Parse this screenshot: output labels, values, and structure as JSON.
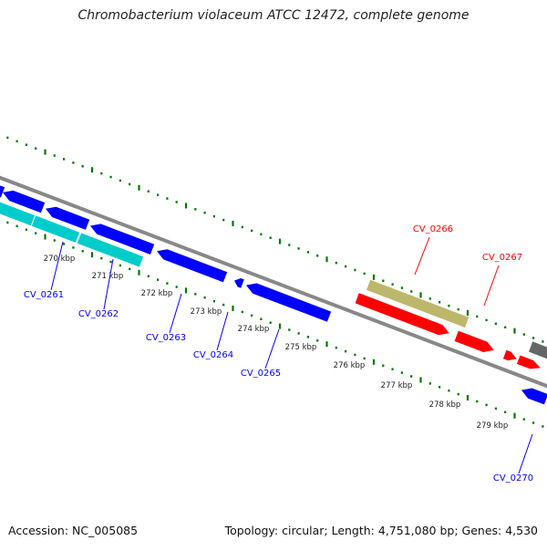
{
  "title": "Chromobacterium violaceum ATCC 12472, complete genome",
  "accession": "Accession: NC_005085",
  "topology": "Topology: circular; Length: 4,751,080 bp; Genes: 4,530",
  "colors": {
    "forward_cds": "#ff0000",
    "reverse_cds": "#0000ff",
    "rna": "#00cccc",
    "pseudo": "#bdb76b",
    "other": "#666666",
    "backbone": "#888888",
    "ticks": "#007700"
  },
  "ruler": [
    "270 kbp",
    "271 kbp",
    "272 kbp",
    "273 kbp",
    "274 kbp",
    "275 kbp",
    "276 kbp",
    "277 kbp",
    "278 kbp",
    "279 kbp"
  ],
  "gene_labels": {
    "reverse": [
      "CV_0261",
      "CV_0262",
      "CV_0263",
      "CV_0264",
      "CV_0265",
      "CV_0270"
    ],
    "forward": [
      "CV_0266",
      "CV_0267"
    ]
  }
}
